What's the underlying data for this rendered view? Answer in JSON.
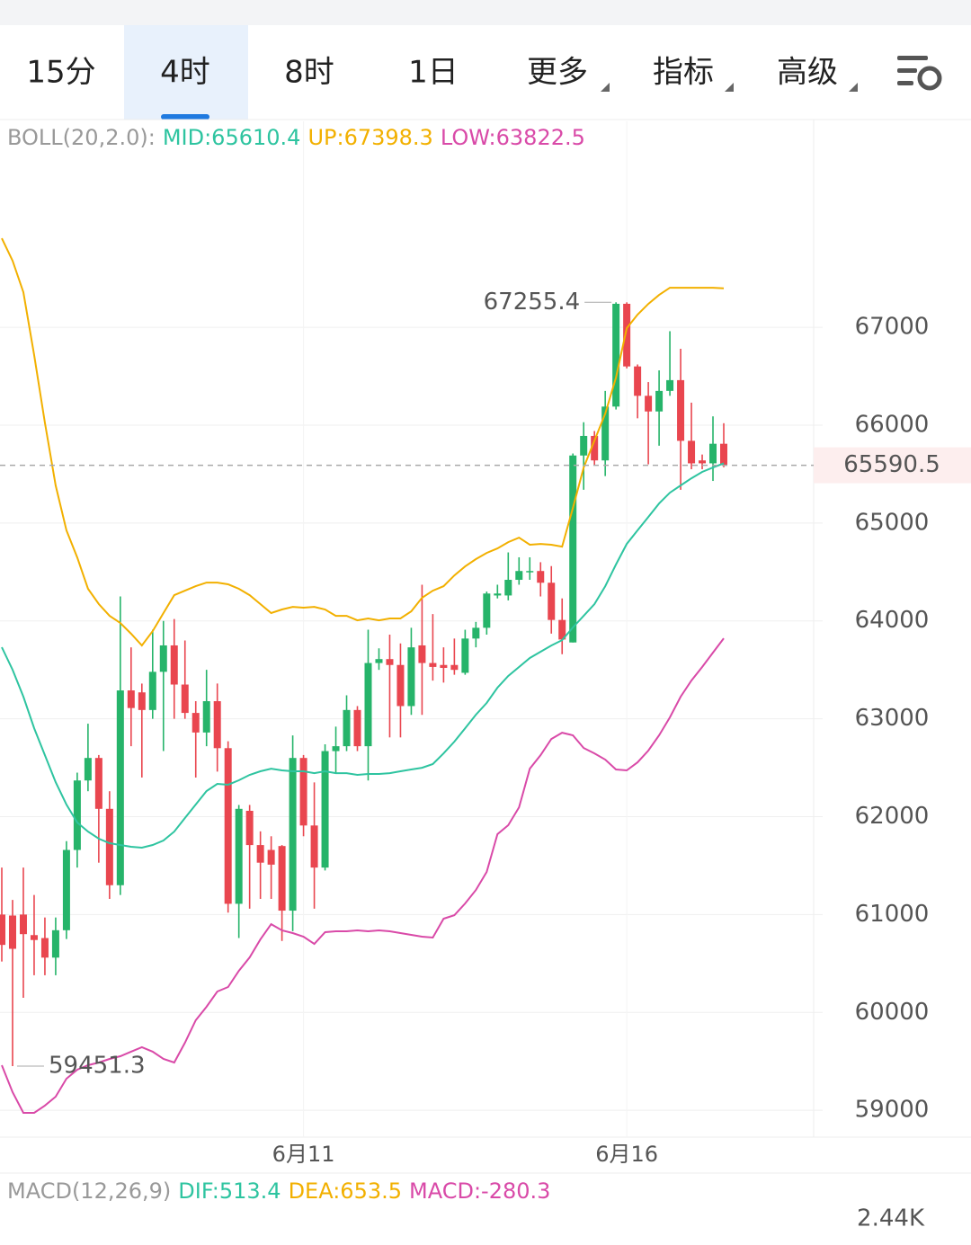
{
  "tabs": [
    "15分",
    "4时",
    "8时",
    "1日",
    "更多",
    "指标",
    "高级"
  ],
  "active_tab": 1,
  "chart_data": {
    "type": "candlestick",
    "indicator_title": "BOLL(20,2.0):",
    "categories": [
      null,
      null,
      null,
      null,
      null,
      null,
      null,
      null,
      null,
      null,
      null,
      null,
      null,
      null,
      null,
      null,
      null,
      null,
      null,
      null,
      null,
      null,
      null,
      null,
      null,
      null,
      null,
      null,
      "6月11",
      null,
      null,
      null,
      null,
      null,
      null,
      null,
      null,
      null,
      null,
      null,
      null,
      null,
      null,
      null,
      null,
      null,
      null,
      null,
      null,
      null,
      null,
      null,
      null,
      null,
      null,
      null,
      null,
      null,
      "6月16",
      null,
      null,
      null,
      null,
      null,
      null,
      null,
      null,
      null
    ],
    "up_color": "#26b46a",
    "down_color": "#e9464f",
    "open": [
      61000,
      60990,
      61000,
      60790,
      60760,
      60560,
      60840,
      61660,
      62370,
      62600,
      62080,
      61300,
      63290,
      63270,
      63090,
      63480,
      63750,
      63350,
      63060,
      62860,
      63180,
      62700,
      61110,
      62060,
      61710,
      61660,
      61700,
      61040,
      62600,
      61910,
      61480,
      62670,
      62720,
      63090,
      62720,
      63570,
      63610,
      63550,
      63130,
      63750,
      63570,
      63550,
      63550,
      63470,
      63820,
      63930,
      64260,
      64260,
      64420,
      64500,
      64510,
      64390,
      64010,
      63780,
      65690,
      65890,
      65640,
      66190,
      67240,
      66600,
      66300,
      66140,
      66350,
      66460,
      65840,
      65640,
      65610,
      65810
    ],
    "high": [
      61480,
      61150,
      61480,
      61200,
      60970,
      60970,
      61750,
      62450,
      62950,
      62630,
      62260,
      64250,
      63730,
      63360,
      63910,
      64000,
      64020,
      63800,
      63180,
      63500,
      63360,
      62770,
      62120,
      62120,
      61850,
      61800,
      61710,
      62830,
      62630,
      62350,
      62740,
      62920,
      63240,
      63130,
      63910,
      63720,
      63860,
      63770,
      63930,
      64370,
      64070,
      63730,
      63820,
      63910,
      63990,
      64300,
      64370,
      64700,
      64650,
      64650,
      64600,
      64560,
      64230,
      65710,
      66030,
      65940,
      66350,
      67255.4,
      67255,
      66620,
      66440,
      66560,
      66960,
      66780,
      66230,
      65700,
      66090,
      66020
    ],
    "low": [
      60520,
      59451.3,
      60150,
      60380,
      60380,
      60380,
      60750,
      61480,
      62260,
      61530,
      61160,
      61200,
      62720,
      62400,
      63000,
      62670,
      63000,
      63000,
      62400,
      62720,
      62460,
      61020,
      60760,
      61060,
      61160,
      61160,
      60730,
      60830,
      61800,
      61060,
      61450,
      62450,
      62670,
      62670,
      62370,
      63500,
      62810,
      62810,
      63040,
      63040,
      63390,
      63370,
      63450,
      63450,
      63730,
      63860,
      64230,
      64210,
      64370,
      64420,
      64250,
      63870,
      63660,
      63780,
      65340,
      65590,
      65480,
      66160,
      66580,
      66070,
      65600,
      65790,
      66300,
      65340,
      65550,
      65550,
      65430,
      65570
    ],
    "close": [
      60690,
      60650,
      60800,
      60740,
      60560,
      60840,
      61660,
      62370,
      62600,
      62080,
      61300,
      63290,
      63110,
      63090,
      63480,
      63750,
      63350,
      63060,
      62860,
      63180,
      62700,
      61110,
      62080,
      61710,
      61530,
      61510,
      61040,
      62600,
      61910,
      61480,
      62670,
      62720,
      63090,
      62720,
      63570,
      63610,
      63550,
      63130,
      63730,
      63570,
      63530,
      63520,
      63500,
      63820,
      63930,
      64280,
      64280,
      64420,
      64510,
      64510,
      64390,
      64010,
      63810,
      65690,
      65890,
      65640,
      66190,
      67240,
      66600,
      66300,
      66140,
      66350,
      66460,
      65840,
      65610,
      65610,
      65810,
      65590.5
    ],
    "lines": [
      {
        "label": "MID:65610.4",
        "color": "#2ec4a0",
        "values": [
          63731,
          63501,
          63226,
          62904,
          62629,
          62353,
          62124,
          61940,
          61848,
          61775,
          61729,
          61711,
          61692,
          61683,
          61711,
          61757,
          61848,
          61986,
          62124,
          62262,
          62335,
          62326,
          62372,
          62427,
          62464,
          62491,
          62473,
          62464,
          62464,
          62445,
          62464,
          62445,
          62445,
          62427,
          62436,
          62436,
          62445,
          62464,
          62482,
          62500,
          62537,
          62647,
          62767,
          62904,
          63042,
          63162,
          63318,
          63437,
          63529,
          63621,
          63685,
          63749,
          63804,
          63933,
          64052,
          64172,
          64355,
          64576,
          64787,
          64925,
          65062,
          65200,
          65310,
          65384,
          65457,
          65522,
          65567,
          65610.4
        ]
      },
      {
        "label": "UP:67398.3",
        "color": "#f2b000",
        "values": [
          67909,
          67680,
          67358,
          66715,
          66027,
          65384,
          64925,
          64649,
          64328,
          64172,
          64052,
          63979,
          63869,
          63749,
          63896,
          64080,
          64263,
          64309,
          64355,
          64392,
          64392,
          64374,
          64328,
          64263,
          64172,
          64080,
          64117,
          64144,
          64135,
          64144,
          64117,
          64052,
          64052,
          64006,
          64025,
          64006,
          64025,
          64025,
          64098,
          64236,
          64309,
          64355,
          64465,
          64557,
          64631,
          64695,
          64741,
          64805,
          64851,
          64778,
          64787,
          64778,
          64759,
          65154,
          65567,
          65843,
          66118,
          66486,
          66991,
          67129,
          67239,
          67331,
          67404,
          67404,
          67404,
          67404,
          67404,
          67398.3
        ]
      },
      {
        "label": "LOW:63822.5",
        "color": "#d94aa8",
        "values": [
          59461,
          59185,
          58974,
          58974,
          59048,
          59139,
          59323,
          59415,
          59461,
          59488,
          59525,
          59553,
          59599,
          59644,
          59599,
          59525,
          59488,
          59690,
          59920,
          60058,
          60214,
          60260,
          60425,
          60563,
          60746,
          60902,
          60838,
          60811,
          60774,
          60700,
          60820,
          60829,
          60829,
          60838,
          60829,
          60838,
          60829,
          60811,
          60792,
          60774,
          60765,
          60958,
          60994,
          61114,
          61251,
          61435,
          61821,
          61913,
          62096,
          62491,
          62629,
          62794,
          62858,
          62831,
          62702,
          62647,
          62583,
          62482,
          62473,
          62555,
          62675,
          62831,
          63015,
          63226,
          63391,
          63529,
          63676,
          63822.5
        ]
      }
    ],
    "ylim": [
      58726,
      69104
    ],
    "yticks": [
      59000,
      60000,
      61000,
      62000,
      63000,
      64000,
      65000,
      66000,
      67000
    ],
    "grid": true,
    "max_label": 67255.4,
    "min_label": 59451.3,
    "last_price": 65590.5,
    "last_price_color": "#e9464f"
  },
  "macd_panel": {
    "title": "MACD(12,26,9)",
    "items": [
      {
        "text": "DIF:513.4",
        "color": "#2ec4a0"
      },
      {
        "text": "DEA:653.5",
        "color": "#f2b000"
      },
      {
        "text": "MACD:-280.3",
        "color": "#d94aa8"
      }
    ],
    "axis_label": "2.44K"
  }
}
